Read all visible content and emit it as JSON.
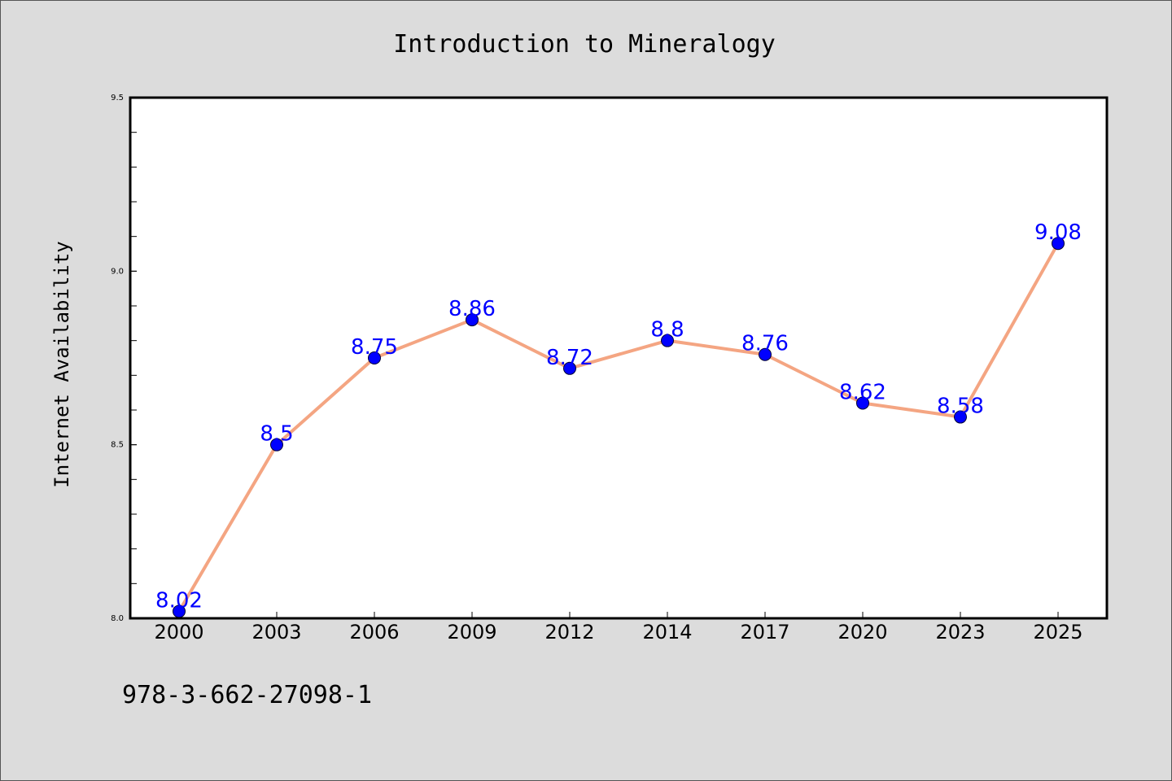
{
  "chart_data": {
    "type": "line",
    "title": "Introduction to Mineralogy",
    "ylabel": "Internet Availability",
    "xlabel": "",
    "categories": [
      "2000",
      "2003",
      "2006",
      "2009",
      "2012",
      "2014",
      "2017",
      "2020",
      "2023",
      "2025"
    ],
    "values": [
      8.02,
      8.5,
      8.75,
      8.86,
      8.72,
      8.8,
      8.76,
      8.62,
      8.58,
      9.08
    ],
    "data_labels": [
      "8.02",
      "8.5",
      "8.75",
      "8.86",
      "8.72",
      "8.8",
      "8.76",
      "8.62",
      "8.58",
      "9.08"
    ],
    "ylim": [
      8.0,
      9.5
    ],
    "yticks": [
      "8.0",
      "8.5",
      "9.0",
      "9.5"
    ],
    "grid": false,
    "line_color": "#f4a582",
    "marker_color": "#0000ff",
    "label_color": "#0000ff"
  },
  "footer": {
    "isbn": "978-3-662-27098-1"
  }
}
